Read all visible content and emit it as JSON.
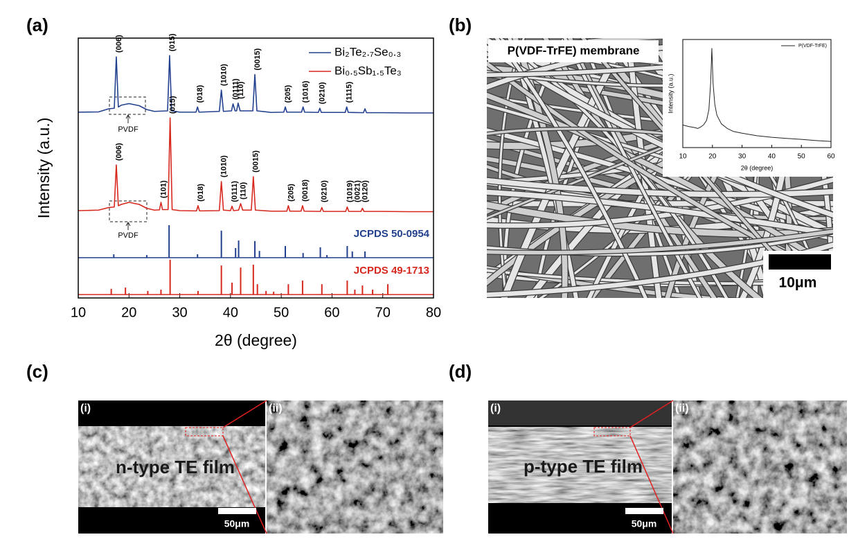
{
  "panel_labels": [
    "(a)",
    "(b)",
    "(c)",
    "(d)"
  ],
  "chart_data": [
    {
      "type": "line",
      "x_label": "2θ (degree)",
      "y_label": "Intensity (a.u.)",
      "xlim": [
        10,
        80
      ],
      "xticks": [
        10,
        20,
        30,
        40,
        50,
        60,
        70,
        80
      ],
      "ylim": [
        0,
        100
      ],
      "series": [
        {
          "name": "Bi₂Te₂.₇Se₀.₃",
          "color": "#23408e",
          "hump_label": "PVDF",
          "x": [
            10,
            14,
            16,
            17.1,
            17.5,
            17.9,
            18.5,
            20,
            22,
            23.5,
            25,
            27.6,
            28,
            28.4,
            30,
            33.2,
            33.5,
            33.8,
            37.8,
            38.2,
            38.6,
            40.2,
            40.5,
            40.9,
            41.2,
            41.5,
            41.9,
            44.4,
            44.8,
            45.2,
            48,
            50.5,
            50.8,
            51.1,
            54,
            54.3,
            54.6,
            57.3,
            57.6,
            57.9,
            62.6,
            62.9,
            63.2,
            66.2,
            66.5,
            66.8,
            70,
            75,
            80
          ],
          "values": [
            71.5,
            71.6,
            72.8,
            73,
            92.8,
            73.5,
            74.2,
            74.8,
            74,
            72.5,
            71.8,
            72,
            93.3,
            72,
            71.5,
            71.5,
            73.5,
            71.5,
            71.8,
            80,
            71.8,
            72,
            74.7,
            72,
            72,
            75,
            72,
            72,
            86,
            72,
            71.4,
            71.5,
            73.5,
            71.5,
            71.5,
            73.5,
            71.5,
            71.4,
            73,
            71.4,
            71.4,
            73.5,
            71.4,
            71.3,
            72.8,
            71.3,
            71.3,
            71.2,
            71.2
          ],
          "peak_labels": [
            {
              "text": "(006)",
              "x": 17.5
            },
            {
              "text": "(015)",
              "x": 28
            },
            {
              "text": "(018)",
              "x": 33.5
            },
            {
              "text": "(1010)",
              "x": 38.2
            },
            {
              "text": "(0111)",
              "x": 40.5
            },
            {
              "text": "(110)",
              "x": 41.5
            },
            {
              "text": "(0015)",
              "x": 44.8
            },
            {
              "text": "(205)",
              "x": 50.8
            },
            {
              "text": "(1016)",
              "x": 54.3
            },
            {
              "text": "(0210)",
              "x": 57.6
            },
            {
              "text": "(1115)",
              "x": 62.9
            }
          ]
        },
        {
          "name": "Bi₀.₅Sb₁.₅Te₃",
          "color": "#d7281e",
          "hump_label": "PVDF",
          "x": [
            10,
            14,
            16,
            17.1,
            17.5,
            17.9,
            18.5,
            20,
            22,
            23.5,
            25,
            26,
            26.3,
            26.6,
            27.7,
            28.1,
            28.5,
            30,
            33.3,
            33.6,
            33.9,
            37.8,
            38.2,
            38.6,
            40,
            40.3,
            40.6,
            41.6,
            42,
            42.4,
            44.1,
            44.5,
            44.9,
            48,
            51.1,
            51.4,
            51.7,
            53.9,
            54.2,
            54.5,
            57.7,
            58,
            58.3,
            62.7,
            63,
            63.3,
            65.7,
            66,
            66.3,
            70,
            75,
            80
          ],
          "values": [
            33.6,
            33.8,
            34.8,
            35,
            51.2,
            35.5,
            36,
            36.8,
            36,
            34.5,
            33.8,
            33.9,
            36.8,
            34,
            34,
            69.3,
            34,
            33.6,
            33.5,
            35.5,
            33.5,
            33.6,
            44.8,
            33.8,
            33.6,
            35.3,
            33.6,
            33.8,
            36.3,
            33.8,
            33.8,
            46.7,
            33.8,
            33.4,
            33.4,
            35.5,
            33.4,
            33.4,
            35.5,
            33.4,
            33.3,
            34.8,
            33.3,
            33.3,
            35,
            33.3,
            33.3,
            34.5,
            33.3,
            33.3,
            33.2,
            33.2
          ],
          "peak_labels": [
            {
              "text": "(006)",
              "x": 17.5
            },
            {
              "text": "(101)",
              "x": 26.3
            },
            {
              "text": "(015)",
              "x": 28.1
            },
            {
              "text": "(018)",
              "x": 33.6
            },
            {
              "text": "(1010)",
              "x": 38.2
            },
            {
              "text": "(0111)",
              "x": 40.3
            },
            {
              "text": "(110)",
              "x": 42
            },
            {
              "text": "(0015)",
              "x": 44.5
            },
            {
              "text": "(205)",
              "x": 51.4
            },
            {
              "text": "(0018)",
              "x": 54.2
            },
            {
              "text": "(0210)",
              "x": 58
            },
            {
              "text": "(1019)",
              "x": 63
            },
            {
              "text": "(0021)",
              "x": 64.5
            },
            {
              "text": "(0120)",
              "x": 66
            }
          ]
        }
      ],
      "references": [
        {
          "name": "JCPDS 50-0954",
          "color": "#23408e",
          "base": 15.5,
          "x": [
            17,
            23.5,
            27.9,
            33.5,
            38.2,
            41,
            41.6,
            44.8,
            45.7,
            50.8,
            54.3,
            57.7,
            59,
            63,
            64,
            66.5
          ],
          "values": [
            16.8,
            16.5,
            28,
            16.8,
            25.9,
            19.2,
            22.1,
            21.9,
            18.1,
            20,
            17.3,
            19.5,
            16.5,
            20,
            17.9,
            17.9
          ]
        },
        {
          "name": "JCPDS 49-1713",
          "color": "#d7281e",
          "base": 1.3,
          "x": [
            16.5,
            19.3,
            23.7,
            26.3,
            28.1,
            33.6,
            38.2,
            40.3,
            42,
            44.5,
            45.3,
            47,
            48.5,
            51.4,
            54.2,
            58,
            63,
            64.5,
            66,
            68,
            71
          ],
          "values": [
            3.5,
            4,
            2.7,
            3.2,
            14.7,
            2.7,
            12.5,
            5.9,
            11.7,
            12.8,
            5.3,
            2.7,
            2.4,
            5.3,
            6.7,
            5.3,
            6.7,
            3.2,
            4.8,
            3.2,
            5.3
          ]
        }
      ]
    },
    {
      "type": "line",
      "x_label": "2θ (degree)",
      "y_label": "Intensity (a.u.)",
      "xlim": [
        10,
        60
      ],
      "xticks": [
        10,
        20,
        30,
        40,
        50,
        60
      ],
      "ylim": [
        0,
        100
      ],
      "series": [
        {
          "name": "P(VDF-TrFE)",
          "color": "#222222",
          "x": [
            10,
            12,
            14,
            15,
            16,
            17,
            18,
            18.8,
            19.4,
            19.8,
            20.2,
            20.8,
            21.5,
            23,
            25,
            27,
            30,
            35,
            40,
            45,
            50,
            55,
            60
          ],
          "values": [
            20.9,
            19.5,
            18.5,
            17.7,
            19,
            21,
            25,
            35,
            60,
            91.8,
            60,
            40,
            30,
            22,
            17.7,
            15,
            13.3,
            11,
            9.5,
            8.5,
            7.6,
            6.5,
            5.7
          ]
        }
      ]
    }
  ],
  "membrane_image": {
    "caption": "P(VDF-TrFE) membrane",
    "scale_bar": "10μm"
  },
  "film_images": [
    {
      "sub_labels": [
        "(i)",
        "(ii)"
      ],
      "caption": "n-type TE film",
      "scale_bar": "50μm"
    },
    {
      "sub_labels": [
        "(i)",
        "(ii)"
      ],
      "caption": "p-type TE film",
      "scale_bar": "50μm"
    }
  ]
}
